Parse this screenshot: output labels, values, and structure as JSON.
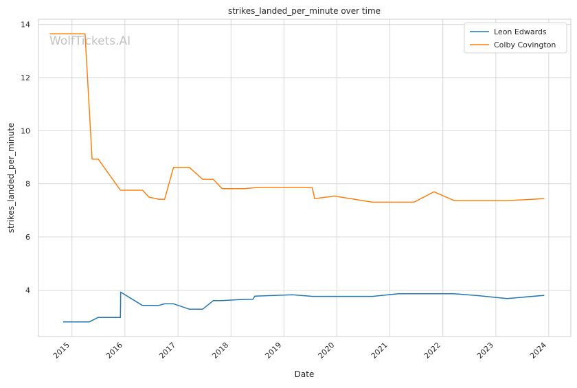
{
  "chart_data": {
    "type": "line",
    "title": "strikes_landed_per_minute over time",
    "xlabel": "Date",
    "ylabel": "strikes_landed_per_minute",
    "watermark": "WolfTickets.AI",
    "xlim": [
      "2014-05-15",
      "2024-06-01"
    ],
    "ylim": [
      2.25,
      14.2
    ],
    "x_ticks": [
      "2015",
      "2016",
      "2017",
      "2018",
      "2019",
      "2020",
      "2021",
      "2022",
      "2023",
      "2024"
    ],
    "y_ticks": [
      4,
      6,
      8,
      10,
      12,
      14
    ],
    "grid": true,
    "legend_position": "top-right",
    "series": [
      {
        "name": "Leon Edwards",
        "color": "#1f77b4",
        "points": [
          [
            "2014-11-01",
            2.8
          ],
          [
            "2015-05-01",
            2.8
          ],
          [
            "2015-07-01",
            2.97
          ],
          [
            "2015-12-01",
            2.97
          ],
          [
            "2015-12-03",
            3.92
          ],
          [
            "2016-05-01",
            3.42
          ],
          [
            "2016-08-20",
            3.42
          ],
          [
            "2016-10-01",
            3.48
          ],
          [
            "2016-12-01",
            3.48
          ],
          [
            "2017-03-20",
            3.28
          ],
          [
            "2017-06-20",
            3.28
          ],
          [
            "2017-09-01",
            3.6
          ],
          [
            "2017-11-01",
            3.6
          ],
          [
            "2018-03-01",
            3.64
          ],
          [
            "2018-06-01",
            3.65
          ],
          [
            "2018-06-15",
            3.77
          ],
          [
            "2019-03-01",
            3.82
          ],
          [
            "2019-07-20",
            3.76
          ],
          [
            "2020-09-01",
            3.76
          ],
          [
            "2021-03-01",
            3.86
          ],
          [
            "2022-03-20",
            3.86
          ],
          [
            "2022-09-01",
            3.79
          ],
          [
            "2023-03-20",
            3.68
          ],
          [
            "2023-12-01",
            3.8
          ]
        ]
      },
      {
        "name": "Colby Covington",
        "color": "#ff7f0e",
        "points": [
          [
            "2014-08-01",
            13.65
          ],
          [
            "2015-04-01",
            13.65
          ],
          [
            "2015-05-20",
            8.93
          ],
          [
            "2015-07-01",
            8.93
          ],
          [
            "2015-12-01",
            7.76
          ],
          [
            "2016-05-01",
            7.76
          ],
          [
            "2016-06-15",
            7.5
          ],
          [
            "2016-08-20",
            7.42
          ],
          [
            "2016-10-01",
            7.42
          ],
          [
            "2016-12-01",
            8.62
          ],
          [
            "2017-03-20",
            8.62
          ],
          [
            "2017-06-20",
            8.17
          ],
          [
            "2017-09-01",
            8.17
          ],
          [
            "2017-11-01",
            7.82
          ],
          [
            "2018-04-01",
            7.82
          ],
          [
            "2018-07-01",
            7.86
          ],
          [
            "2019-07-15",
            7.86
          ],
          [
            "2019-08-01",
            7.44
          ],
          [
            "2019-12-15",
            7.54
          ],
          [
            "2020-09-01",
            7.31
          ],
          [
            "2021-06-15",
            7.31
          ],
          [
            "2021-11-01",
            7.7
          ],
          [
            "2022-03-20",
            7.37
          ],
          [
            "2023-03-20",
            7.37
          ],
          [
            "2023-12-01",
            7.44
          ]
        ]
      }
    ]
  }
}
